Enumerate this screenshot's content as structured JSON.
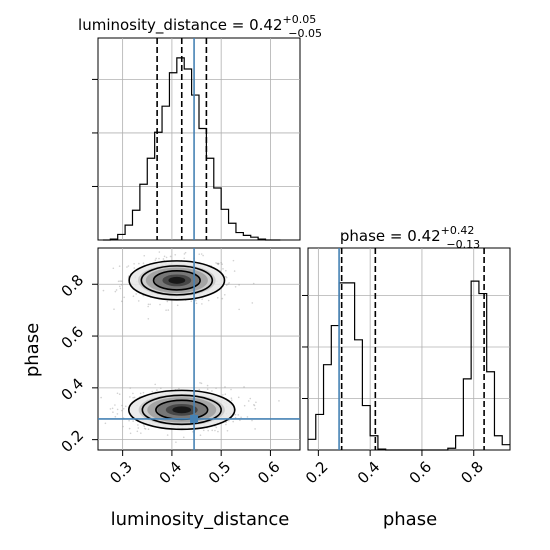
{
  "chart_data": {
    "type": "corner",
    "parameters": [
      "luminosity_distance",
      "phase"
    ],
    "panels": {
      "lum_hist": {
        "type": "histogram",
        "title": {
          "param": "luminosity_distance",
          "median": "0.42",
          "plus": "+0.05",
          "minus": "−0.05"
        },
        "xlim": [
          0.25,
          0.66
        ],
        "bins": [
          {
            "x0": 0.26,
            "x1": 0.275,
            "v": 0.0
          },
          {
            "x0": 0.275,
            "x1": 0.29,
            "v": 0.005
          },
          {
            "x0": 0.29,
            "x1": 0.305,
            "v": 0.03
          },
          {
            "x0": 0.305,
            "x1": 0.32,
            "v": 0.08
          },
          {
            "x0": 0.32,
            "x1": 0.335,
            "v": 0.16
          },
          {
            "x0": 0.335,
            "x1": 0.35,
            "v": 0.3
          },
          {
            "x0": 0.35,
            "x1": 0.365,
            "v": 0.44
          },
          {
            "x0": 0.365,
            "x1": 0.38,
            "v": 0.58
          },
          {
            "x0": 0.38,
            "x1": 0.395,
            "v": 0.72
          },
          {
            "x0": 0.395,
            "x1": 0.41,
            "v": 0.9
          },
          {
            "x0": 0.41,
            "x1": 0.425,
            "v": 0.98
          },
          {
            "x0": 0.425,
            "x1": 0.44,
            "v": 0.92
          },
          {
            "x0": 0.44,
            "x1": 0.455,
            "v": 0.78
          },
          {
            "x0": 0.455,
            "x1": 0.47,
            "v": 0.6
          },
          {
            "x0": 0.47,
            "x1": 0.485,
            "v": 0.44
          },
          {
            "x0": 0.485,
            "x1": 0.5,
            "v": 0.28
          },
          {
            "x0": 0.5,
            "x1": 0.515,
            "v": 0.165
          },
          {
            "x0": 0.515,
            "x1": 0.53,
            "v": 0.09
          },
          {
            "x0": 0.53,
            "x1": 0.545,
            "v": 0.04
          },
          {
            "x0": 0.545,
            "x1": 0.56,
            "v": 0.025
          },
          {
            "x0": 0.56,
            "x1": 0.575,
            "v": 0.015
          },
          {
            "x0": 0.575,
            "x1": 0.59,
            "v": 0.005
          },
          {
            "x0": 0.59,
            "x1": 0.62,
            "v": 0.0
          }
        ],
        "quantiles": [
          0.37,
          0.42,
          0.47
        ],
        "truth": 0.445
      },
      "phase_hist": {
        "type": "histogram",
        "title": {
          "param": "phase",
          "median": "0.42",
          "plus": "+0.42",
          "minus": "−0.13"
        },
        "xlim": [
          0.16,
          0.94
        ],
        "bins": [
          {
            "x0": 0.16,
            "x1": 0.19,
            "v": 0.06
          },
          {
            "x0": 0.19,
            "x1": 0.22,
            "v": 0.2
          },
          {
            "x0": 0.22,
            "x1": 0.25,
            "v": 0.48
          },
          {
            "x0": 0.25,
            "x1": 0.28,
            "v": 0.7
          },
          {
            "x0": 0.28,
            "x1": 0.31,
            "v": 0.94
          },
          {
            "x0": 0.31,
            "x1": 0.34,
            "v": 0.94
          },
          {
            "x0": 0.34,
            "x1": 0.37,
            "v": 0.62
          },
          {
            "x0": 0.37,
            "x1": 0.4,
            "v": 0.25
          },
          {
            "x0": 0.4,
            "x1": 0.43,
            "v": 0.08
          },
          {
            "x0": 0.43,
            "x1": 0.46,
            "v": 0.005
          },
          {
            "x0": 0.46,
            "x1": 0.7,
            "v": 0.0
          },
          {
            "x0": 0.7,
            "x1": 0.73,
            "v": 0.01
          },
          {
            "x0": 0.73,
            "x1": 0.76,
            "v": 0.08
          },
          {
            "x0": 0.76,
            "x1": 0.79,
            "v": 0.4
          },
          {
            "x0": 0.79,
            "x1": 0.82,
            "v": 0.95
          },
          {
            "x0": 0.82,
            "x1": 0.85,
            "v": 0.88
          },
          {
            "x0": 0.85,
            "x1": 0.88,
            "v": 0.44
          },
          {
            "x0": 0.88,
            "x1": 0.91,
            "v": 0.08
          },
          {
            "x0": 0.91,
            "x1": 0.94,
            "v": 0.03
          }
        ],
        "quantiles": [
          0.29,
          0.42,
          0.84
        ],
        "truth": 0.28
      },
      "joint": {
        "type": "contour-scatter",
        "xlim": [
          0.25,
          0.66
        ],
        "ylim": [
          0.16,
          0.94
        ],
        "modes": [
          {
            "cx": 0.41,
            "cy": 0.815,
            "sx": 0.045,
            "sy": 0.035,
            "weight": 0.5
          },
          {
            "cx": 0.42,
            "cy": 0.315,
            "sx": 0.05,
            "sy": 0.035,
            "weight": 0.5
          }
        ],
        "truth": {
          "x": 0.445,
          "y": 0.28
        }
      }
    },
    "xticks": {
      "luminosity_distance": [
        "0.3",
        "0.4",
        "0.5",
        "0.6"
      ],
      "phase": [
        "0.2",
        "0.4",
        "0.6",
        "0.8"
      ]
    },
    "yticks": {
      "phase": [
        "0.2",
        "0.4",
        "0.6",
        "0.8"
      ]
    },
    "xlabels": [
      "luminosity_distance",
      "phase"
    ],
    "ylabels": [
      "phase"
    ],
    "grid": true,
    "colors": {
      "hist": "#000000",
      "truth": "#4682b4",
      "quantile": "#000000",
      "grid": "#b0b0b0",
      "density": "#000000"
    }
  }
}
